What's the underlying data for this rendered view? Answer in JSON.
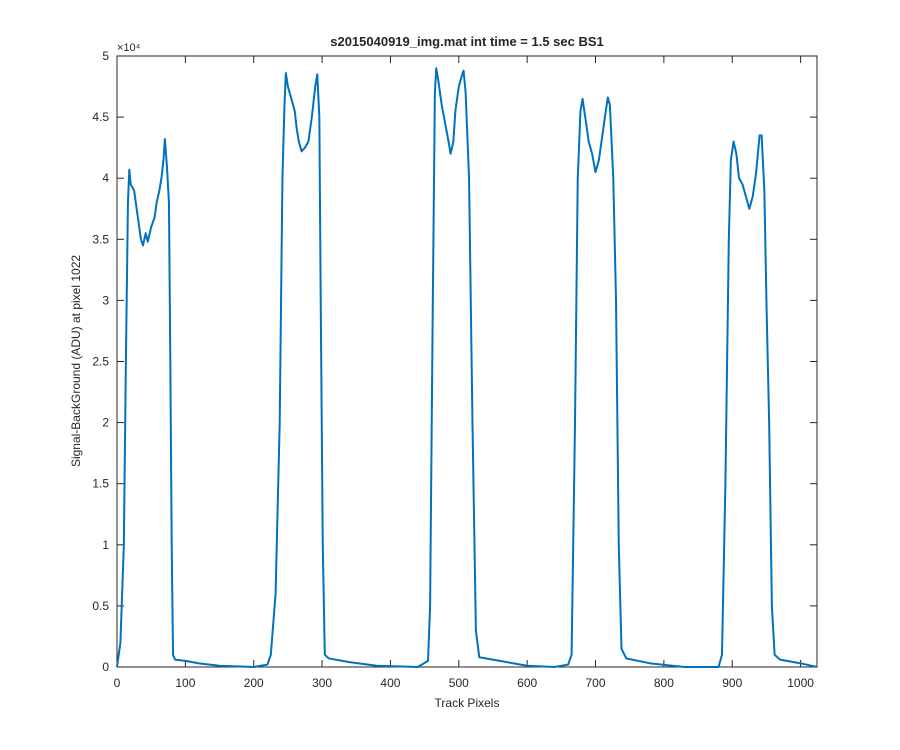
{
  "chart_data": {
    "type": "line",
    "title": "s2015040919_img.mat int time = 1.5 sec   BS1",
    "xlabel": "Track Pixels",
    "ylabel": "Signal-BackGround (ADU) at pixel 1022",
    "y_multiplier": "×10⁴",
    "color": "#0072bd",
    "xlim": [
      0,
      1024
    ],
    "xticks": [
      0,
      100,
      200,
      300,
      400,
      500,
      600,
      700,
      800,
      900,
      1000
    ],
    "ylim": [
      0,
      5
    ],
    "yticks": [
      0,
      0.5,
      1,
      1.5,
      2,
      2.5,
      3,
      3.5,
      4,
      4.5,
      5
    ],
    "x": [
      0,
      5,
      10,
      13,
      16,
      18,
      20,
      25,
      30,
      35,
      38,
      42,
      45,
      50,
      55,
      58,
      62,
      65,
      68,
      70,
      73,
      76,
      78,
      80,
      82,
      85,
      100,
      120,
      150,
      200,
      220,
      225,
      232,
      238,
      242,
      245,
      247,
      250,
      255,
      260,
      263,
      266,
      270,
      275,
      280,
      285,
      290,
      293,
      296,
      298,
      301,
      304,
      310,
      340,
      380,
      440,
      455,
      458,
      462,
      465,
      467,
      470,
      475,
      480,
      485,
      488,
      492,
      495,
      500,
      505,
      507,
      510,
      515,
      520,
      525,
      530,
      560,
      600,
      640,
      660,
      665,
      670,
      674,
      678,
      681,
      685,
      690,
      695,
      700,
      705,
      710,
      715,
      718,
      721,
      726,
      730,
      734,
      738,
      745,
      780,
      830,
      880,
      885,
      890,
      895,
      898,
      902,
      906,
      910,
      915,
      920,
      925,
      930,
      935,
      940,
      943,
      947,
      950,
      954,
      958,
      962,
      970,
      1000,
      1024
    ],
    "values": [
      0.0,
      0.2,
      1.0,
      2.5,
      3.8,
      4.07,
      3.95,
      3.9,
      3.7,
      3.5,
      3.45,
      3.55,
      3.48,
      3.6,
      3.68,
      3.8,
      3.9,
      4.0,
      4.15,
      4.32,
      4.1,
      3.8,
      2.5,
      1.0,
      0.1,
      0.06,
      0.05,
      0.03,
      0.01,
      0.0,
      0.02,
      0.1,
      0.6,
      2.0,
      4.0,
      4.6,
      4.86,
      4.75,
      4.65,
      4.55,
      4.4,
      4.3,
      4.22,
      4.25,
      4.3,
      4.5,
      4.75,
      4.85,
      4.5,
      3.0,
      1.0,
      0.1,
      0.07,
      0.04,
      0.01,
      0.0,
      0.05,
      0.5,
      3.0,
      4.7,
      4.9,
      4.8,
      4.6,
      4.45,
      4.3,
      4.2,
      4.3,
      4.55,
      4.75,
      4.85,
      4.88,
      4.7,
      4.0,
      2.0,
      0.3,
      0.08,
      0.05,
      0.01,
      0.0,
      0.02,
      0.1,
      2.0,
      4.0,
      4.55,
      4.65,
      4.5,
      4.3,
      4.2,
      4.05,
      4.15,
      4.35,
      4.55,
      4.66,
      4.6,
      4.0,
      3.0,
      1.0,
      0.15,
      0.07,
      0.03,
      0.0,
      0.0,
      0.1,
      1.5,
      3.5,
      4.15,
      4.3,
      4.2,
      4.0,
      3.95,
      3.85,
      3.75,
      3.85,
      4.05,
      4.35,
      4.35,
      3.9,
      3.0,
      2.0,
      0.5,
      0.1,
      0.06,
      0.03,
      0.0
    ]
  }
}
